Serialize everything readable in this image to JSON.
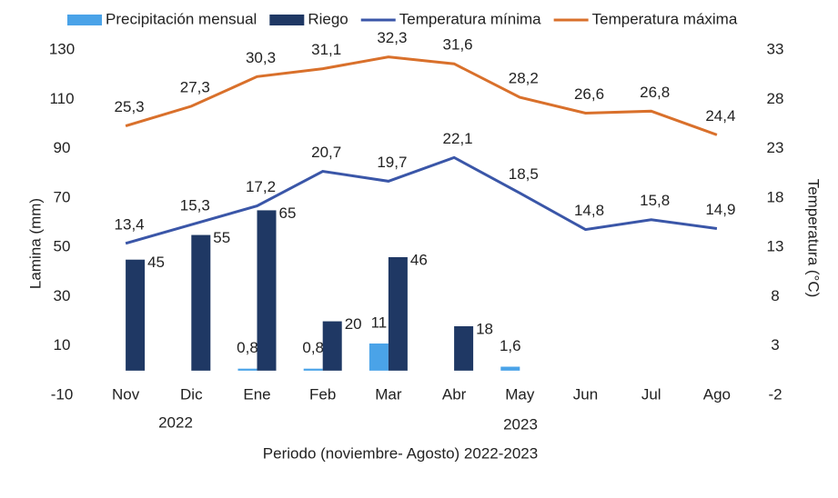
{
  "chart_data": {
    "type": "combo",
    "x_label": "Periodo (noviembre- Agosto) 2022-2023",
    "y_label": "Lamina (mm)",
    "y2_label": "Temperatura (°C)",
    "year_labels": [
      "2022",
      "2023"
    ],
    "categories": [
      "Nov",
      "Dic",
      "Ene",
      "Feb",
      "Mar",
      "Abr",
      "May",
      "Jun",
      "Jul",
      "Ago"
    ],
    "ylim": [
      -10,
      130
    ],
    "yticks": [
      -10,
      10,
      30,
      50,
      70,
      90,
      110,
      130
    ],
    "y2lim": [
      -2,
      33
    ],
    "y2ticks": [
      -2,
      3,
      8,
      13,
      18,
      23,
      28,
      33
    ],
    "legend": "top",
    "series": [
      {
        "name": "Precipitación mensual",
        "type": "bar",
        "color": "#4aa3e8",
        "values": [
          null,
          null,
          0.8,
          0.8,
          11,
          null,
          1.6,
          null,
          null,
          null
        ],
        "value_labels": [
          null,
          null,
          "0,8",
          "0,8",
          "11",
          null,
          "1,6",
          null,
          null,
          null
        ]
      },
      {
        "name": "Riego",
        "type": "bar",
        "color": "#1f3864",
        "values": [
          45,
          55,
          65,
          20,
          46,
          18,
          null,
          null,
          null,
          null
        ]
      },
      {
        "name": "Temperatura mínima",
        "type": "line",
        "axis": "y2",
        "color": "#3a56a8",
        "values": [
          13.4,
          15.3,
          17.2,
          20.7,
          19.7,
          22.1,
          18.5,
          14.8,
          15.8,
          14.9
        ],
        "value_labels": [
          "13,4",
          "15,3",
          "17,2",
          "20,7",
          "19,7",
          "22,1",
          "18,5",
          "14,8",
          "15,8",
          "14,9"
        ]
      },
      {
        "name": "Temperatura máxima",
        "type": "line",
        "axis": "y2",
        "color": "#d9702b",
        "values": [
          25.3,
          27.3,
          30.3,
          31.1,
          32.3,
          31.6,
          28.2,
          26.6,
          26.8,
          24.4
        ],
        "value_labels": [
          "25,3",
          "27,3",
          "30,3",
          "31,1",
          "32,3",
          "31,6",
          "28,2",
          "26,6",
          "26,8",
          "24,4"
        ]
      }
    ]
  }
}
